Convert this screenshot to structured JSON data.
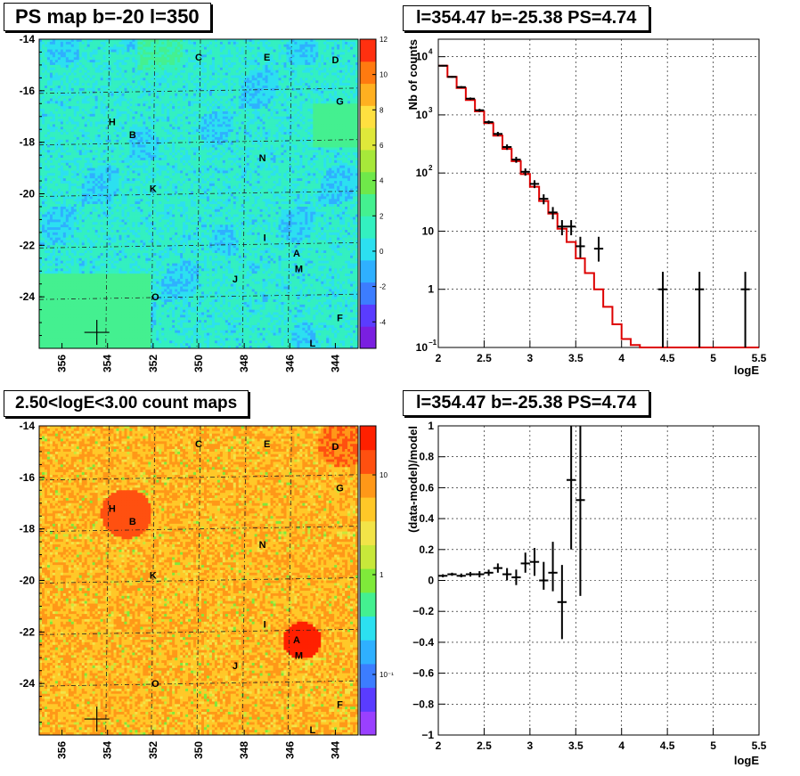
{
  "colors": {
    "ps_scale": [
      "#7a1fe0",
      "#5a3cff",
      "#3c7dff",
      "#2fb0ff",
      "#2ce0f0",
      "#33f0c0",
      "#44f090",
      "#6fe84a",
      "#a7e83a",
      "#dfe83a",
      "#ffe040",
      "#ffb020",
      "#ff7a10",
      "#ff3010"
    ],
    "count_scale": [
      "#9a40ff",
      "#5a3cff",
      "#3c7dff",
      "#2fb0ff",
      "#2ce0f0",
      "#44f090",
      "#7fea3a",
      "#c8e83a",
      "#f2e448",
      "#ffc828",
      "#ff9818",
      "#ff5010",
      "#ff2000"
    ],
    "model_line": "#dd0000",
    "data_marks": "#000000"
  },
  "panels": {
    "ps_map": {
      "title": "PS map b=-20 l=350",
      "x_ticks": [
        "356",
        "354",
        "352",
        "350",
        "348",
        "346",
        "344"
      ],
      "y_ticks": [
        "-14",
        "-16",
        "-18",
        "-20",
        "-22",
        "-24"
      ],
      "z_ticks": [
        "12",
        "10",
        "8",
        "6",
        "4",
        "2",
        "0",
        "-2",
        "-4"
      ]
    },
    "count_map": {
      "title": "2.50<logE<3.00 count maps",
      "x_ticks": [
        "356",
        "354",
        "352",
        "350",
        "348",
        "346",
        "344"
      ],
      "y_ticks": [
        "-14",
        "-16",
        "-18",
        "-20",
        "-22",
        "-24"
      ],
      "z_ticks": [
        "10",
        "1",
        "10⁻¹"
      ]
    },
    "spectrum_title": "l=354.47 b=-25.38 PS=4.74",
    "residual_title": "l=354.47 b=-25.38 PS=4.74"
  },
  "source_labels": [
    {
      "name": "C",
      "lon": 350.0,
      "lat": -14.7
    },
    {
      "name": "E",
      "lon": 347.0,
      "lat": -14.7
    },
    {
      "name": "D",
      "lon": 344.0,
      "lat": -14.8
    },
    {
      "name": "G",
      "lon": 343.8,
      "lat": -16.4
    },
    {
      "name": "H",
      "lon": 353.8,
      "lat": -17.2
    },
    {
      "name": "B",
      "lon": 352.9,
      "lat": -17.7
    },
    {
      "name": "N",
      "lon": 347.2,
      "lat": -18.6
    },
    {
      "name": "K",
      "lon": 352.0,
      "lat": -19.8
    },
    {
      "name": "I",
      "lon": 347.1,
      "lat": -21.7
    },
    {
      "name": "A",
      "lon": 345.7,
      "lat": -22.3
    },
    {
      "name": "M",
      "lon": 345.6,
      "lat": -22.9
    },
    {
      "name": "J",
      "lon": 348.4,
      "lat": -23.3
    },
    {
      "name": "O",
      "lon": 351.9,
      "lat": -24.0
    },
    {
      "name": "F",
      "lon": 343.8,
      "lat": -24.8
    },
    {
      "name": "L",
      "lon": 345.0,
      "lat": -25.8
    }
  ],
  "ps_position": {
    "lon": 354.47,
    "lat": -25.38
  },
  "chart_data": [
    {
      "type": "line",
      "title": "l=354.47 b=-25.38 PS=4.74",
      "xlabel": "logE",
      "ylabel": "Nb of counts",
      "xlim": [
        2,
        5.5
      ],
      "ylim": [
        0.1,
        20000
      ],
      "yscale": "log",
      "grid": true,
      "x_ticks": [
        "2",
        "2.5",
        "3",
        "3.5",
        "4",
        "4.5",
        "5",
        "5.5"
      ],
      "y_ticks": [
        {
          "v": 10000,
          "t": "10",
          "e": "4"
        },
        {
          "v": 1000,
          "t": "10",
          "e": "3"
        },
        {
          "v": 100,
          "t": "10",
          "e": "2"
        },
        {
          "v": 10,
          "t": "10",
          "e": ""
        },
        {
          "v": 1,
          "t": "1",
          "e": ""
        },
        {
          "v": 0.1,
          "t": "10",
          "e": "−1"
        }
      ],
      "series": [
        {
          "kind": "model_histogram",
          "edges": [
            2.0,
            2.1,
            2.2,
            2.3,
            2.4,
            2.5,
            2.6,
            2.7,
            2.8,
            2.9,
            3.0,
            3.1,
            3.2,
            3.3,
            3.4,
            3.5,
            3.6,
            3.7,
            3.8,
            3.9,
            4.0,
            4.1,
            4.2,
            5.5
          ],
          "values": [
            7000,
            4500,
            2900,
            1800,
            1150,
            720,
            440,
            260,
            160,
            96,
            58,
            33,
            20,
            11,
            6.5,
            3.4,
            1.9,
            1.0,
            0.5,
            0.25,
            0.14,
            0.11,
            0.1
          ]
        },
        {
          "kind": "data_points",
          "points": [
            {
              "x": 2.05,
              "y": 7000,
              "lo": 6800,
              "hi": 7200
            },
            {
              "x": 2.15,
              "y": 4500,
              "lo": 4350,
              "hi": 4650
            },
            {
              "x": 2.25,
              "y": 3000,
              "lo": 2880,
              "hi": 3120
            },
            {
              "x": 2.35,
              "y": 1900,
              "lo": 1810,
              "hi": 1990
            },
            {
              "x": 2.45,
              "y": 1200,
              "lo": 1130,
              "hi": 1270
            },
            {
              "x": 2.55,
              "y": 750,
              "lo": 700,
              "hi": 800
            },
            {
              "x": 2.65,
              "y": 470,
              "lo": 430,
              "hi": 510
            },
            {
              "x": 2.75,
              "y": 280,
              "lo": 250,
              "hi": 310
            },
            {
              "x": 2.85,
              "y": 170,
              "lo": 150,
              "hi": 190
            },
            {
              "x": 2.95,
              "y": 105,
              "lo": 90,
              "hi": 120
            },
            {
              "x": 3.05,
              "y": 65,
              "lo": 55,
              "hi": 75
            },
            {
              "x": 3.15,
              "y": 36,
              "lo": 29,
              "hi": 43
            },
            {
              "x": 3.25,
              "y": 21,
              "lo": 16,
              "hi": 26
            },
            {
              "x": 3.35,
              "y": 12,
              "lo": 8.5,
              "hi": 15.5
            },
            {
              "x": 3.45,
              "y": 12,
              "lo": 8.5,
              "hi": 15.5
            },
            {
              "x": 3.55,
              "y": 5.5,
              "lo": 3.5,
              "hi": 8
            },
            {
              "x": 3.75,
              "y": 5,
              "lo": 3,
              "hi": 8
            },
            {
              "x": 4.45,
              "y": 1,
              "lo": 0.1,
              "hi": 2
            },
            {
              "x": 4.85,
              "y": 1,
              "lo": 0.1,
              "hi": 2
            },
            {
              "x": 5.35,
              "y": 1,
              "lo": 0.1,
              "hi": 2
            }
          ]
        }
      ]
    },
    {
      "type": "scatter",
      "title": "l=354.47 b=-25.38 PS=4.74",
      "xlabel": "logE",
      "ylabel": "(data-model)/model",
      "xlim": [
        2,
        5.5
      ],
      "ylim": [
        -1,
        1
      ],
      "grid": true,
      "x_ticks": [
        "2",
        "2.5",
        "3",
        "3.5",
        "4",
        "4.5",
        "5",
        "5.5"
      ],
      "y_ticks": [
        "1",
        "0.8",
        "0.6",
        "0.4",
        "0.2",
        "0",
        "−0.2",
        "−0.4",
        "−0.6",
        "−0.8",
        "−1"
      ],
      "points": [
        {
          "x": 2.05,
          "y": 0.03,
          "lo": 0.02,
          "hi": 0.04
        },
        {
          "x": 2.15,
          "y": 0.04,
          "lo": 0.03,
          "hi": 0.05
        },
        {
          "x": 2.25,
          "y": 0.03,
          "lo": 0.02,
          "hi": 0.045
        },
        {
          "x": 2.35,
          "y": 0.04,
          "lo": 0.025,
          "hi": 0.055
        },
        {
          "x": 2.45,
          "y": 0.04,
          "lo": 0.02,
          "hi": 0.06
        },
        {
          "x": 2.55,
          "y": 0.05,
          "lo": 0.03,
          "hi": 0.07
        },
        {
          "x": 2.65,
          "y": 0.08,
          "lo": 0.05,
          "hi": 0.11
        },
        {
          "x": 2.75,
          "y": 0.04,
          "lo": 0.0,
          "hi": 0.08
        },
        {
          "x": 2.85,
          "y": 0.02,
          "lo": -0.03,
          "hi": 0.07
        },
        {
          "x": 2.95,
          "y": 0.11,
          "lo": 0.05,
          "hi": 0.18
        },
        {
          "x": 3.05,
          "y": 0.12,
          "lo": 0.03,
          "hi": 0.21
        },
        {
          "x": 3.15,
          "y": 0.0,
          "lo": -0.06,
          "hi": 0.12
        },
        {
          "x": 3.25,
          "y": 0.05,
          "lo": -0.07,
          "hi": 0.25
        },
        {
          "x": 3.35,
          "y": -0.14,
          "lo": -0.38,
          "hi": 0.1
        },
        {
          "x": 3.45,
          "y": 0.65,
          "lo": 0.2,
          "hi": 1.1
        },
        {
          "x": 3.55,
          "y": 0.52,
          "lo": -0.1,
          "hi": 1.1
        }
      ]
    }
  ]
}
